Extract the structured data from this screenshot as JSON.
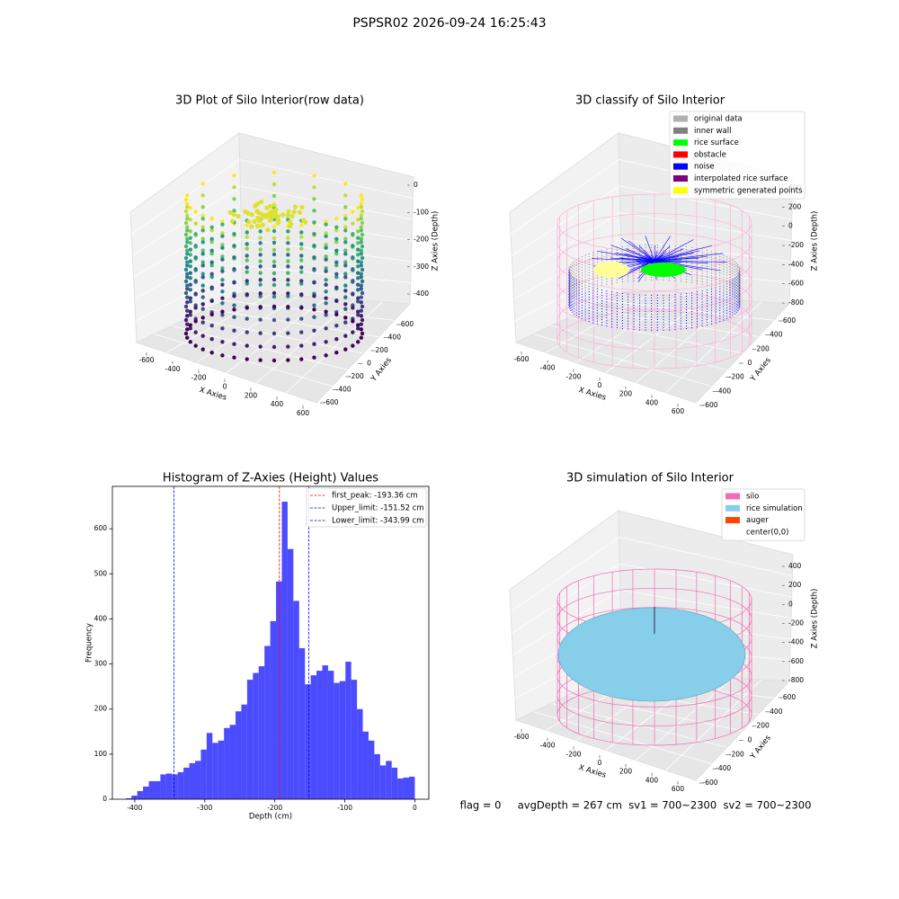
{
  "suptitle": "PSPSR02 2026-09-24 16:25:43",
  "footer": "flag = 0     avgDepth = 267 cm  sv1 = 700~2300  sv2 = 700~2300",
  "chart_data": [
    {
      "type": "scatter3d",
      "title": "3D Plot of Silo Interior(row data)",
      "xlabel": "X Axies",
      "ylabel": "Y Axies",
      "zlabel": "Z Axies (Depth)",
      "xticks": [
        -600,
        -400,
        -200,
        0,
        200,
        400,
        600
      ],
      "yticks": [
        -600,
        -400,
        -200,
        0,
        200,
        400,
        600
      ],
      "zticks": [
        0,
        -100,
        -200,
        -300,
        -400
      ],
      "colormap": "viridis"
    },
    {
      "type": "scatter3d",
      "title": "3D classify of Silo Interior",
      "xlabel": "X Axies",
      "ylabel": "Y Axies",
      "zlabel": "Z Axies (Depth)",
      "xticks": [
        -600,
        -400,
        -200,
        0,
        200,
        400,
        600
      ],
      "yticks": [
        -600,
        -400,
        -200,
        0,
        200,
        400,
        600
      ],
      "zticks": [
        400,
        200,
        0,
        -200,
        -400,
        -600,
        -800
      ],
      "legend": [
        {
          "name": "original data",
          "color": "#b0b0b0"
        },
        {
          "name": "inner wall",
          "color": "#808080"
        },
        {
          "name": "rice surface",
          "color": "#00ff00"
        },
        {
          "name": "obstacle",
          "color": "#ff0000"
        },
        {
          "name": "noise",
          "color": "#0000ff"
        },
        {
          "name": "interpolated rice surface",
          "color": "#800080"
        },
        {
          "name": "symmetric generated points",
          "color": "#ffff00"
        }
      ]
    },
    {
      "type": "histogram",
      "title": "Histogram of Z-Axies (Height) Values",
      "xlabel": "Depth (cm)",
      "ylabel": "Frequency",
      "color": "#0000ff",
      "alpha": 0.7,
      "bins": [
        -413,
        -404.74,
        -396.48,
        -388.22,
        -379.96,
        -371.7,
        -363.44,
        -355.18,
        -346.92,
        -338.66,
        -330.4,
        -322.14,
        -313.88,
        -305.62,
        -297.36,
        -289.1,
        -280.84,
        -272.58,
        -264.32,
        -256.06,
        -247.8,
        -239.54,
        -231.28,
        -223.02,
        -214.76,
        -206.5,
        -198.24,
        -189.98,
        -181.72,
        -173.46,
        -165.2,
        -156.94,
        -148.68,
        -140.42,
        -132.16,
        -123.9,
        -115.64,
        -107.38,
        -99.12,
        -90.86,
        -82.6,
        -74.34,
        -66.08,
        -57.82,
        -49.56,
        -41.3,
        -33.04,
        -24.78,
        -16.52,
        -8.26,
        0
      ],
      "values": [
        2,
        8,
        18,
        28,
        40,
        40,
        55,
        57,
        55,
        60,
        70,
        80,
        85,
        110,
        147,
        125,
        130,
        158,
        165,
        195,
        210,
        265,
        280,
        295,
        340,
        395,
        483,
        660,
        555,
        440,
        335,
        255,
        275,
        285,
        297,
        285,
        258,
        262,
        305,
        265,
        200,
        150,
        130,
        100,
        75,
        85,
        70,
        46,
        48,
        50
      ],
      "xlim": [
        -432,
        20
      ],
      "ylim": [
        0,
        694
      ],
      "xticks": [
        -400,
        -300,
        -200,
        -100,
        0
      ],
      "yticks": [
        0,
        100,
        200,
        300,
        400,
        500,
        600
      ],
      "vlines": [
        {
          "label": "first_peak: -193.36 cm",
          "value": -193.36,
          "color": "#ff0000"
        },
        {
          "label": "Upper_limit: -151.52 cm",
          "value": -151.52,
          "color": "#0000ff"
        },
        {
          "label": "Lower_limit: -343.99 cm",
          "value": -343.99,
          "color": "#0000ff"
        }
      ]
    },
    {
      "type": "surface3d",
      "title": "3D simulation of Silo Interior",
      "xlabel": "X Axies",
      "ylabel": "Y Axies",
      "zlabel": "Z Axies (Depth)",
      "xticks": [
        -600,
        -400,
        -200,
        0,
        200,
        400,
        600
      ],
      "yticks": [
        -600,
        -400,
        -200,
        0,
        200,
        400,
        600
      ],
      "zticks": [
        400,
        200,
        0,
        -200,
        -400,
        -600,
        -800
      ],
      "legend": [
        {
          "name": "silo",
          "color": "#f36bb5"
        },
        {
          "name": "rice simulation",
          "color": "#87ceeb"
        },
        {
          "name": "auger",
          "color": "#ff4500"
        },
        {
          "name": "center(0,0)",
          "color": "#ffffff"
        }
      ]
    }
  ]
}
